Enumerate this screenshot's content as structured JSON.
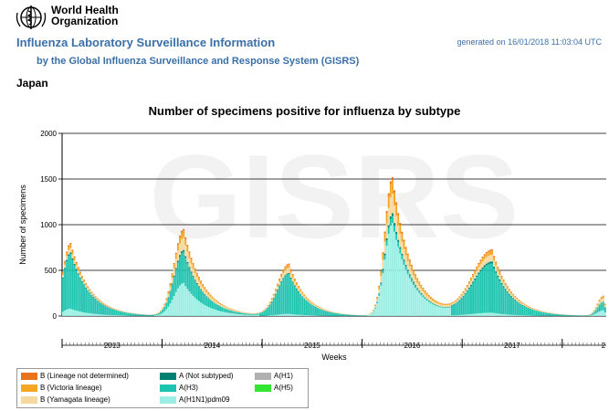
{
  "header": {
    "org_line1": "World Health",
    "org_line2": "Organization",
    "title_main": "Influenza Laboratory Surveillance Information",
    "title_sub": "by the Global Influenza Surveillance and Response System (GISRS)",
    "generated": "generated on 16/01/2018 11:03:04 UTC",
    "country": "Japan"
  },
  "colors": {
    "title_blue": "#3a6fa8",
    "watermark": "#f2f2f2"
  },
  "chart_data": {
    "type": "bar",
    "stacked": true,
    "title": "Number of specimens positive for influenza by subtype",
    "xlabel": "Weeks",
    "ylabel": "Number of specimens",
    "ylim": [
      0,
      2000
    ],
    "yticks": [
      0,
      500,
      1000,
      1500,
      2000
    ],
    "grid": true,
    "watermark": "GISRS",
    "year_labels": [
      "2013",
      "2014",
      "2015",
      "2016",
      "2017",
      "2"
    ],
    "series": [
      {
        "name": "B (Lineage not determined)",
        "color": "#e8731a"
      },
      {
        "name": "B (Victoria lineage)",
        "color": "#f5a623"
      },
      {
        "name": "B (Yamagata lineage)",
        "color": "#f5d9a0"
      },
      {
        "name": "A (Not subtyped)",
        "color": "#007f73"
      },
      {
        "name": "A(H3)",
        "color": "#1fc4b0"
      },
      {
        "name": "A(H1N1)pdm09",
        "color": "#9beee3"
      },
      {
        "name": "A(H1)",
        "color": "#b0b0b0"
      },
      {
        "name": "A(H5)",
        "color": "#33e633"
      }
    ],
    "seasons": [
      {
        "peak_week": 4,
        "weeks_total": 260,
        "peak": 800,
        "rise": 4,
        "fall": 10,
        "mix": [
          0.02,
          0.05,
          0.06,
          0.02,
          0.75,
          0.1,
          0,
          0
        ]
      },
      {
        "peak_week": 63,
        "peak": 950,
        "rise": 5,
        "fall": 10,
        "mix": [
          0.02,
          0.08,
          0.14,
          0.02,
          0.36,
          0.38,
          0,
          0
        ]
      },
      {
        "peak_week": 118,
        "peak": 570,
        "rise": 6,
        "fall": 9,
        "mix": [
          0.02,
          0.06,
          0.1,
          0.02,
          0.76,
          0.04,
          0,
          0
        ]
      },
      {
        "peak_week": 172,
        "peak": 1520,
        "rise": 4,
        "fall": 10,
        "mix": [
          0.02,
          0.1,
          0.14,
          0.02,
          0.05,
          0.67,
          0,
          0
        ]
      },
      {
        "peak_week": 224,
        "peak": 720,
        "rise": 10,
        "fall": 10,
        "mix": [
          0.02,
          0.06,
          0.1,
          0.03,
          0.74,
          0.05,
          0,
          0
        ]
      },
      {
        "peak_week": 282,
        "peak": 220,
        "rise": 3,
        "fall": 2,
        "mix": [
          0.02,
          0.1,
          0.18,
          0.02,
          0.4,
          0.28,
          0,
          0
        ]
      }
    ],
    "total_weeks": 284,
    "legend_placement": "bottom-left"
  }
}
